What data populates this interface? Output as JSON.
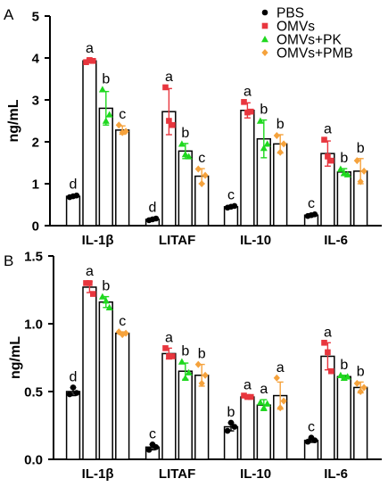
{
  "chart_data": [
    {
      "panel": "A",
      "type": "bar",
      "ylabel": "ng/mL",
      "ylim": [
        0,
        5
      ],
      "yticks": [
        "0",
        "1",
        "2",
        "3",
        "4",
        "5"
      ],
      "categories": [
        "IL-1β",
        "LITAF",
        "IL-10",
        "IL-6"
      ],
      "series": [
        {
          "name": "PBS",
          "values": [
            0.7,
            0.15,
            0.45,
            0.25
          ],
          "sd": [
            0.03,
            0.03,
            0.03,
            0.03
          ],
          "points": [
            [
              0.68,
              0.7,
              0.72
            ],
            [
              0.13,
              0.15,
              0.17
            ],
            [
              0.43,
              0.45,
              0.47
            ],
            [
              0.23,
              0.25,
              0.27
            ]
          ],
          "letters": [
            "d",
            "d",
            "c",
            "c"
          ]
        },
        {
          "name": "OMVs",
          "values": [
            3.93,
            2.72,
            2.75,
            1.72
          ],
          "sd": [
            0.05,
            0.55,
            0.18,
            0.3
          ],
          "points": [
            [
              3.9,
              3.95,
              3.93
            ],
            [
              3.3,
              2.5,
              2.4
            ],
            [
              2.95,
              2.7,
              2.72
            ],
            [
              2.05,
              1.65,
              1.55
            ]
          ],
          "letters": [
            "a",
            "a",
            "a",
            "a"
          ]
        },
        {
          "name": "OMVs+PK",
          "values": [
            2.8,
            1.78,
            2.07,
            1.28
          ],
          "sd": [
            0.4,
            0.18,
            0.45,
            0.08
          ],
          "points": [
            [
              3.25,
              2.5,
              2.65
            ],
            [
              1.95,
              1.7,
              1.65
            ],
            [
              2.5,
              1.85,
              1.95
            ],
            [
              1.35,
              1.25,
              1.22
            ]
          ],
          "letters": [
            "b",
            "b",
            "b",
            "b"
          ]
        },
        {
          "name": "OMVs+PMB",
          "values": [
            2.28,
            1.18,
            1.95,
            1.3
          ],
          "sd": [
            0.1,
            0.18,
            0.22,
            0.3
          ],
          "points": [
            [
              2.4,
              2.22,
              2.25
            ],
            [
              1.35,
              1.0,
              1.2
            ],
            [
              2.15,
              1.75,
              1.95
            ],
            [
              1.55,
              1.05,
              1.3
            ]
          ],
          "letters": [
            "c",
            "c",
            "b",
            "b"
          ]
        }
      ]
    },
    {
      "panel": "B",
      "type": "bar",
      "ylabel": "ng/mL",
      "ylim": [
        0,
        1.5
      ],
      "yticks": [
        "0.0",
        "0.5",
        "1.0",
        "1.5"
      ],
      "categories": [
        "IL-1β",
        "LITAF",
        "IL-10",
        "IL-6"
      ],
      "series": [
        {
          "name": "PBS",
          "values": [
            0.5,
            0.09,
            0.24,
            0.14
          ],
          "sd": [
            0.03,
            0.02,
            0.03,
            0.015
          ],
          "points": [
            [
              0.48,
              0.53,
              0.49
            ],
            [
              0.07,
              0.11,
              0.09
            ],
            [
              0.21,
              0.27,
              0.24
            ],
            [
              0.13,
              0.16,
              0.14
            ]
          ],
          "letters": [
            "d",
            "c",
            "b",
            "c"
          ]
        },
        {
          "name": "OMVs",
          "values": [
            1.27,
            0.78,
            0.46,
            0.76
          ],
          "sd": [
            0.04,
            0.04,
            0.01,
            0.1
          ],
          "points": [
            [
              1.3,
              1.3,
              1.22
            ],
            [
              0.82,
              0.76,
              0.76
            ],
            [
              0.47,
              0.46,
              0.46
            ],
            [
              0.86,
              0.79,
              0.65
            ]
          ],
          "letters": [
            "a",
            "a",
            "a",
            "a"
          ]
        },
        {
          "name": "OMVs+PK",
          "values": [
            1.16,
            0.65,
            0.4,
            0.61
          ],
          "sd": [
            0.04,
            0.06,
            0.04,
            0.01
          ],
          "points": [
            [
              1.2,
              1.17,
              1.12
            ],
            [
              0.72,
              0.6,
              0.64
            ],
            [
              0.42,
              0.38,
              0.41
            ],
            [
              0.62,
              0.6,
              0.61
            ]
          ],
          "letters": [
            "b",
            "b",
            "a",
            "b"
          ]
        },
        {
          "name": "OMVs+PMB",
          "values": [
            0.93,
            0.62,
            0.47,
            0.53
          ],
          "sd": [
            0.01,
            0.08,
            0.1,
            0.04
          ],
          "points": [
            [
              0.94,
              0.92,
              0.93
            ],
            [
              0.7,
              0.56,
              0.62
            ],
            [
              0.6,
              0.38,
              0.43
            ],
            [
              0.56,
              0.5,
              0.53
            ]
          ],
          "letters": [
            "c",
            "b",
            "a",
            "b"
          ]
        }
      ]
    }
  ],
  "colors": {
    "PBS": "#000000",
    "OMVs": "#e8363e",
    "OMVs+PK": "#1fd81f",
    "OMVs+PMB": "#f5a23c"
  },
  "markers": {
    "PBS": "circle",
    "OMVs": "square",
    "OMVs+PK": "triangle",
    "OMVs+PMB": "diamond"
  }
}
